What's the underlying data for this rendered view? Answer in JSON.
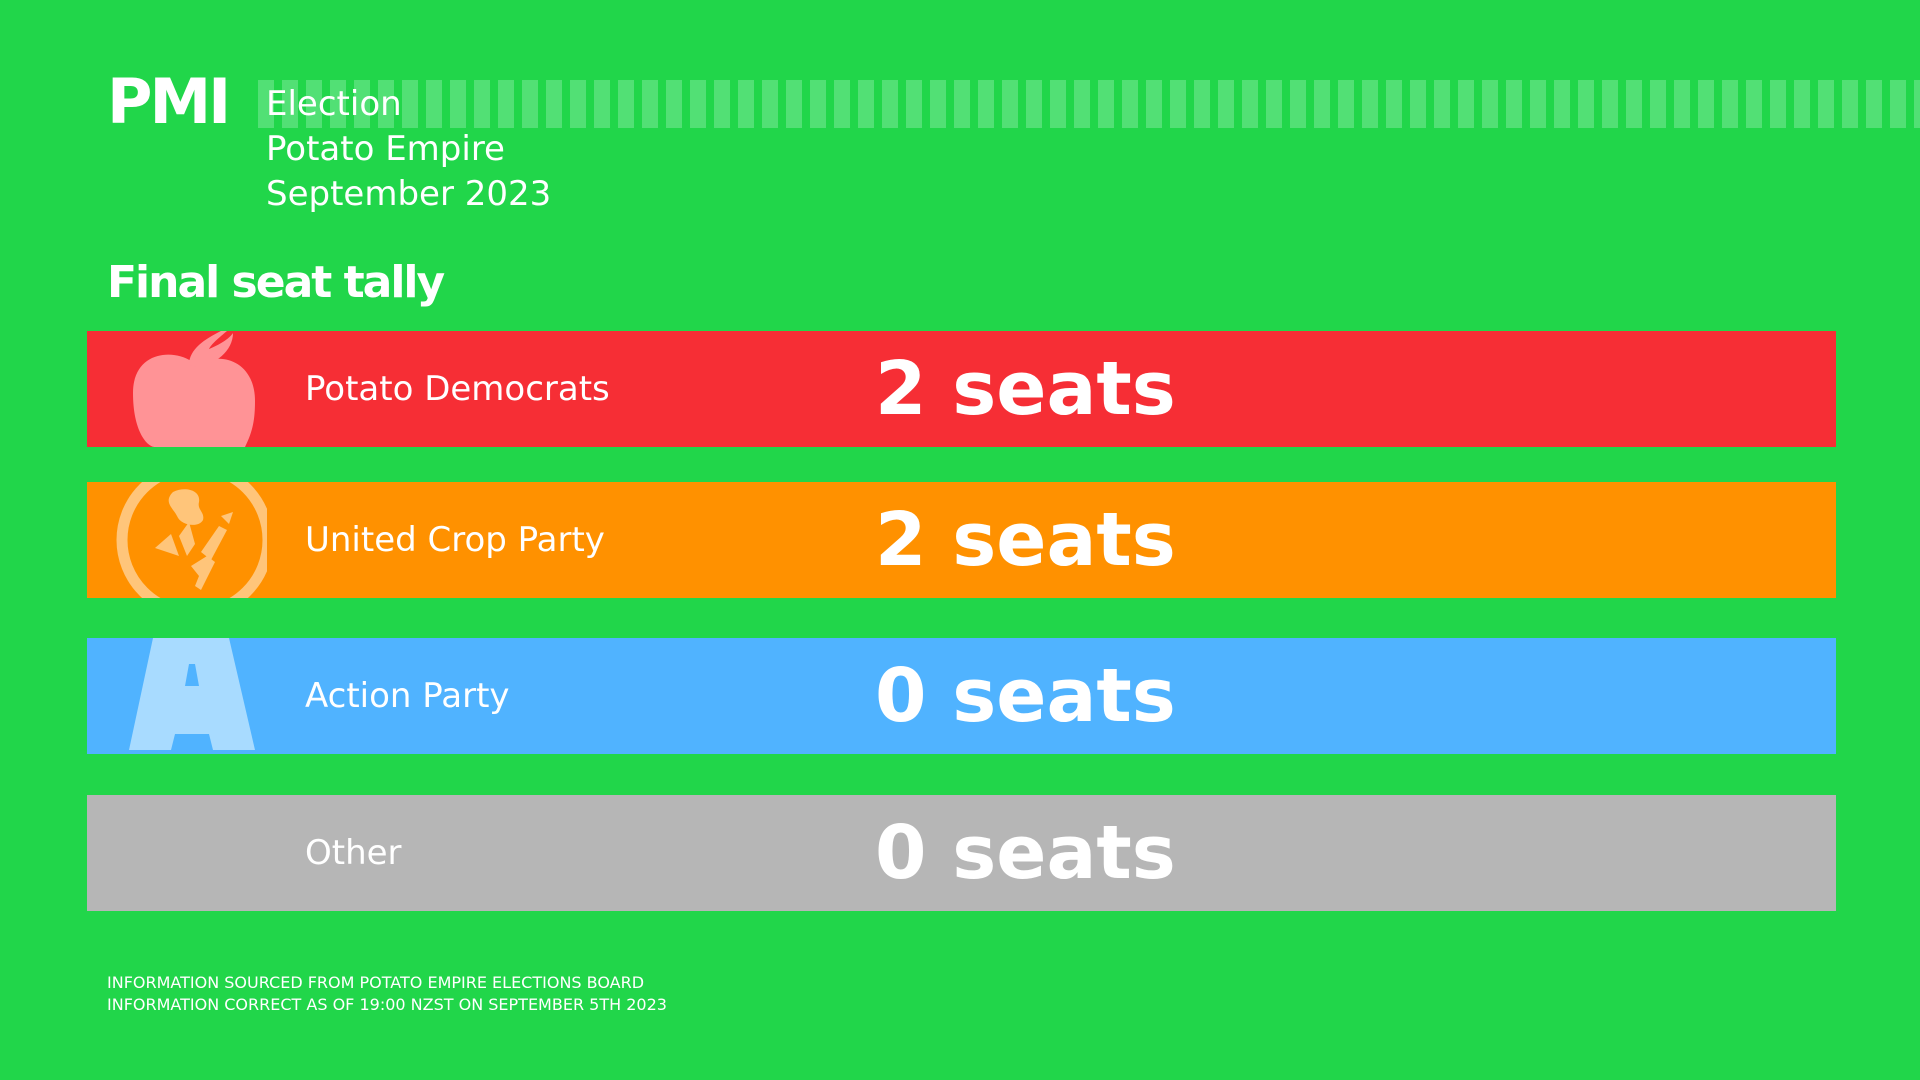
{
  "brand": {
    "logo_text": "PMI"
  },
  "header": {
    "line1": "Election",
    "line2": "Potato Empire",
    "line3": "September 2023"
  },
  "colors": {
    "background": "#21d64a",
    "stripe": "#52e075"
  },
  "chart_data": {
    "type": "table",
    "title": "Final seat tally",
    "unit": "seats",
    "rows": [
      {
        "party": "Potato Democrats",
        "seats": 2,
        "seats_label": "2 seats",
        "color": "#f62e35",
        "icon_color": "#ff9396",
        "icon": "apple-logo-icon"
      },
      {
        "party": "United Crop Party",
        "seats": 2,
        "seats_label": "2 seats",
        "color": "#ff9100",
        "icon_color": "#ffc57a",
        "icon": "crop-wreath-logo-icon"
      },
      {
        "party": "Action Party",
        "seats": 0,
        "seats_label": "0 seats",
        "color": "#50b3ff",
        "icon_color": "#a8dbff",
        "icon": "letter-a-logo-icon"
      },
      {
        "party": "Other",
        "seats": 0,
        "seats_label": "0 seats",
        "color": "#b6b6b6",
        "icon_color": "",
        "icon": ""
      }
    ]
  },
  "footer": {
    "line1": "Information sourced from Potato Empire Elections Board",
    "line2": "Information correct as of 19:00 NZST on September 5th 2023"
  }
}
